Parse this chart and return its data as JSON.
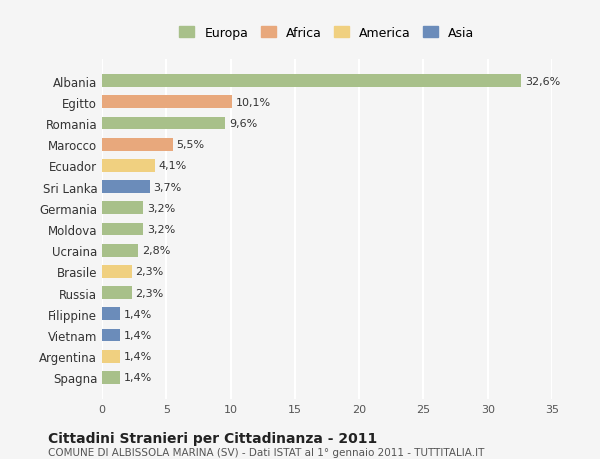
{
  "categories": [
    "Albania",
    "Egitto",
    "Romania",
    "Marocco",
    "Ecuador",
    "Sri Lanka",
    "Germania",
    "Moldova",
    "Ucraina",
    "Brasile",
    "Russia",
    "Filippine",
    "Vietnam",
    "Argentina",
    "Spagna"
  ],
  "values": [
    32.6,
    10.1,
    9.6,
    5.5,
    4.1,
    3.7,
    3.2,
    3.2,
    2.8,
    2.3,
    2.3,
    1.4,
    1.4,
    1.4,
    1.4
  ],
  "labels": [
    "32,6%",
    "10,1%",
    "9,6%",
    "5,5%",
    "4,1%",
    "3,7%",
    "3,2%",
    "3,2%",
    "2,8%",
    "2,3%",
    "2,3%",
    "1,4%",
    "1,4%",
    "1,4%",
    "1,4%"
  ],
  "continents": [
    "Europa",
    "Africa",
    "Europa",
    "Africa",
    "America",
    "Asia",
    "Europa",
    "Europa",
    "Europa",
    "America",
    "Europa",
    "Asia",
    "Asia",
    "America",
    "Europa"
  ],
  "colors": {
    "Europa": "#a8c08a",
    "Africa": "#e8a87c",
    "America": "#f0d080",
    "Asia": "#6b8cba"
  },
  "legend_order": [
    "Europa",
    "Africa",
    "America",
    "Asia"
  ],
  "xlim": [
    0,
    35
  ],
  "xticks": [
    0,
    5,
    10,
    15,
    20,
    25,
    30,
    35
  ],
  "title": "Cittadini Stranieri per Cittadinanza - 2011",
  "subtitle": "COMUNE DI ALBISSOLA MARINA (SV) - Dati ISTAT al 1° gennaio 2011 - TUTTITALIA.IT",
  "background_color": "#f5f5f5",
  "grid_color": "#ffffff",
  "bar_height": 0.6
}
